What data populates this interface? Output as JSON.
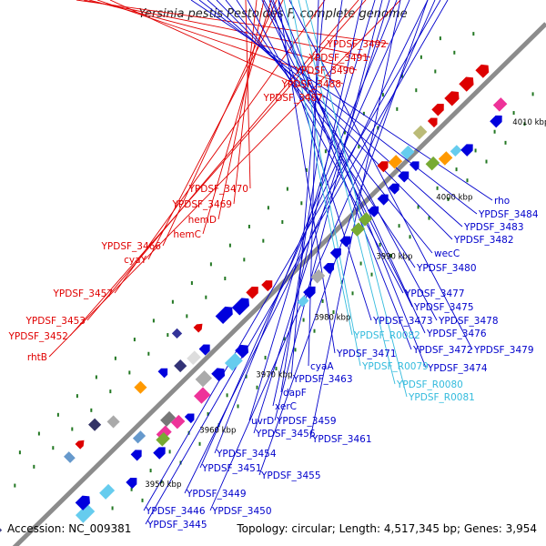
{
  "title": "Yersinia pestis Pestoides F, complete genome",
  "footer": {
    "accession": "Accession: NC_009381",
    "summary": "Topology: circular; Length: 4,517,345 bp; Genes: 3,954"
  },
  "colors": {
    "backbone": "#8c8c8c",
    "forward_label": "#e00000",
    "reverse_label": "#0000cc",
    "rna_label": "#33bbdd",
    "tick": "#227722"
  },
  "ticks": [
    "3950 kbp",
    "3960 kbp",
    "3970 kbp",
    "3980 kbp",
    "3990 kbp",
    "4000 kbp",
    "4010 kbp"
  ],
  "labels_forward": [
    "YPDSF_3492",
    "YPDSF_3491",
    "YPDSF_3490",
    "YPDSF_3488",
    "YPDSF_3487",
    "YPDSF_3470",
    "YPDSF_3469",
    "hemD",
    "hemC",
    "YPDSF_3466",
    "cyaY",
    "YPDSF_3457",
    "YPDSF_3453",
    "YPDSF_3452",
    "rhtB"
  ],
  "labels_reverse": [
    "rho",
    "YPDSF_3484",
    "YPDSF_3483",
    "YPDSF_3482",
    "wecC",
    "YPDSF_3480",
    "YPDSF_3477",
    "YPDSF_3478",
    "YPDSF_3475",
    "YPDSF_3476",
    "YPDSF_3473",
    "YPDSF_3479",
    "YPDSF_3472",
    "YPDSF_3474",
    "YPDSF_3471",
    "cyaA",
    "YPDSF_3463",
    "dapF",
    "xerC",
    "uvrD",
    "YPDSF_3459",
    "YPDSF_3456",
    "YPDSF_3461",
    "YPDSF_3454",
    "YPDSF_3451",
    "YPDSF_3455",
    "YPDSF_3449",
    "YPDSF_3446",
    "YPDSF_3450",
    "YPDSF_3445"
  ],
  "labels_rna": [
    "YPDSF_R0082",
    "YPDSF_R0079",
    "YPDSF_R0080",
    "YPDSF_R0081"
  ]
}
